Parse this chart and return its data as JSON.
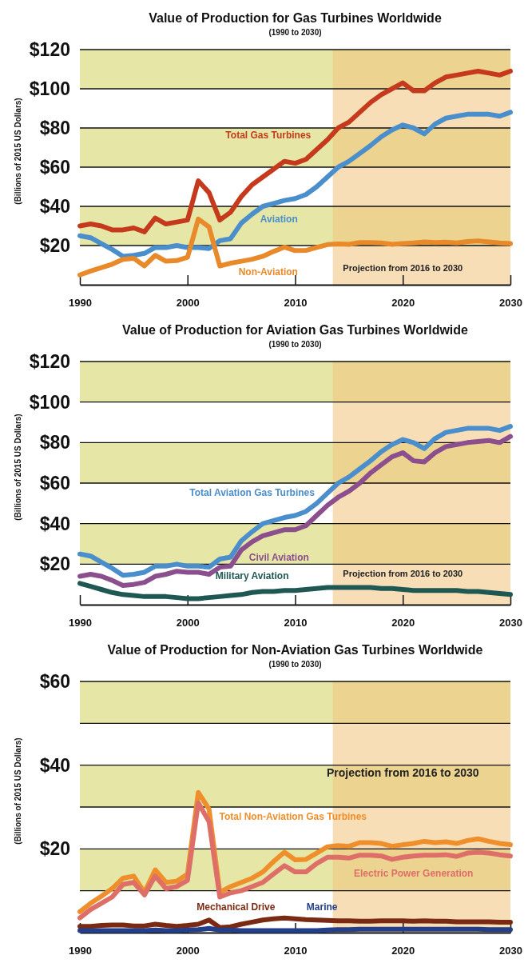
{
  "chart_data": [
    {
      "type": "line",
      "title": "Value of Production for Gas Turbines Worldwide",
      "subtitle": "(1990 to 2030)",
      "ylabel": "(Billions of 2015 US Dollars)",
      "x": [
        1990,
        1991,
        1992,
        1993,
        1994,
        1995,
        1996,
        1997,
        1998,
        1999,
        2000,
        2001,
        2002,
        2003,
        2004,
        2005,
        2006,
        2007,
        2008,
        2009,
        2010,
        2011,
        2012,
        2013,
        2014,
        2015,
        2016,
        2017,
        2018,
        2019,
        2020,
        2021,
        2022,
        2023,
        2024,
        2025,
        2026,
        2027,
        2028,
        2029,
        2030
      ],
      "xlim": [
        1990,
        2030
      ],
      "xticks": [
        1990,
        2000,
        2010,
        2020,
        2030
      ],
      "ylim": [
        0,
        120
      ],
      "yticks": [
        {
          "value": 20,
          "label": "$20"
        },
        {
          "value": 40,
          "label": "$40"
        },
        {
          "value": 60,
          "label": "$60"
        },
        {
          "value": 80,
          "label": "$80"
        },
        {
          "value": 100,
          "label": "$100"
        },
        {
          "value": 120,
          "label": "$120"
        }
      ],
      "grid": "y",
      "legend": false,
      "bands": [
        {
          "axis": "y",
          "from": 100,
          "to": 120,
          "color": "#e6e6a6"
        },
        {
          "axis": "y",
          "from": 60,
          "to": 80,
          "color": "#e6e6a6"
        },
        {
          "axis": "y",
          "from": 20,
          "to": 40,
          "color": "#e6e6a6"
        },
        {
          "axis": "x",
          "from": 2013.5,
          "to": 2030,
          "label": "Projection from 2016 to 2030",
          "color": "#f0c27c"
        }
      ],
      "series": [
        {
          "name": "Total Gas Turbines",
          "color": "#c53a1c",
          "values": [
            30,
            31,
            30,
            28,
            28,
            29,
            27,
            34,
            31,
            32,
            33,
            53,
            47,
            33,
            37,
            45,
            51,
            55,
            59,
            63,
            62,
            64,
            69,
            74,
            80,
            83,
            88,
            93,
            97,
            100,
            103,
            99,
            99,
            103,
            106,
            107,
            108,
            109,
            108,
            107,
            109
          ]
        },
        {
          "name": "Aviation",
          "color": "#4a8ecb",
          "values": [
            25,
            24,
            21,
            18,
            14.5,
            15,
            16,
            19,
            19,
            20,
            19,
            19,
            18.5,
            22.5,
            23.5,
            31.5,
            36,
            40,
            41.5,
            43,
            44,
            46,
            50,
            55,
            60,
            63,
            67,
            71,
            75.5,
            79,
            81.5,
            80,
            77,
            82,
            85,
            86,
            87,
            87,
            87,
            86,
            88
          ]
        },
        {
          "name": "Non-Aviation",
          "color": "#e8892a",
          "values": [
            5,
            7,
            8.7,
            10.5,
            13,
            13.5,
            9.6,
            15,
            12,
            12.3,
            14,
            33.5,
            29.5,
            9.6,
            11,
            12,
            13,
            14.5,
            17,
            19.2,
            17.4,
            17.5,
            19,
            20.5,
            20.8,
            20.6,
            21.5,
            21.5,
            21.3,
            20.6,
            21,
            21.3,
            21.8,
            21.5,
            21.7,
            21.3,
            22,
            22.4,
            21.8,
            21.3,
            21
          ]
        }
      ]
    },
    {
      "type": "line",
      "title": "Value of Production for Aviation Gas Turbines Worldwide",
      "subtitle": "(1990 to 2030)",
      "ylabel": "(Billions of 2015 US Dollars)",
      "x": [
        1990,
        1991,
        1992,
        1993,
        1994,
        1995,
        1996,
        1997,
        1998,
        1999,
        2000,
        2001,
        2002,
        2003,
        2004,
        2005,
        2006,
        2007,
        2008,
        2009,
        2010,
        2011,
        2012,
        2013,
        2014,
        2015,
        2016,
        2017,
        2018,
        2019,
        2020,
        2021,
        2022,
        2023,
        2024,
        2025,
        2026,
        2027,
        2028,
        2029,
        2030
      ],
      "xlim": [
        1990,
        2030
      ],
      "xticks": [
        1990,
        2000,
        2010,
        2020,
        2030
      ],
      "ylim": [
        0,
        120
      ],
      "yticks": [
        {
          "value": 20,
          "label": "$20"
        },
        {
          "value": 40,
          "label": "$40"
        },
        {
          "value": 60,
          "label": "$60"
        },
        {
          "value": 80,
          "label": "$80"
        },
        {
          "value": 100,
          "label": "$100"
        },
        {
          "value": 120,
          "label": "$120"
        }
      ],
      "grid": "y",
      "legend": false,
      "bands": [
        {
          "axis": "y",
          "from": 100,
          "to": 120,
          "color": "#e6e6a6"
        },
        {
          "axis": "y",
          "from": 60,
          "to": 80,
          "color": "#e6e6a6"
        },
        {
          "axis": "y",
          "from": 20,
          "to": 40,
          "color": "#e6e6a6"
        },
        {
          "axis": "x",
          "from": 2013.5,
          "to": 2030,
          "label": "Projection from 2016 to 2030",
          "color": "#f0c27c"
        }
      ],
      "series": [
        {
          "name": "Total Aviation Gas Turbines",
          "color": "#4a8ecb",
          "values": [
            25,
            24,
            21,
            18,
            14.5,
            15,
            16,
            19,
            19,
            20,
            19,
            19,
            18.5,
            22.5,
            23.5,
            31.5,
            36,
            40,
            41.5,
            43,
            44,
            46,
            50,
            55,
            60,
            63,
            67,
            71,
            75.5,
            79,
            81.5,
            80,
            77,
            82,
            85,
            86,
            87,
            87,
            87,
            86,
            88
          ]
        },
        {
          "name": "Civil Aviation",
          "color": "#8a4f8c",
          "values": [
            14,
            15,
            14,
            12,
            9.5,
            10,
            11,
            14,
            15,
            16.5,
            16,
            16,
            15,
            18.5,
            19,
            27,
            31,
            34,
            35.5,
            37,
            37,
            39,
            44,
            49,
            53,
            56,
            60,
            65,
            69,
            73,
            75,
            71,
            70.5,
            75,
            78,
            79,
            80,
            80.5,
            81,
            80,
            83
          ]
        },
        {
          "name": "Military Aviation",
          "color": "#1f5753",
          "values": [
            10.5,
            9,
            7.5,
            6,
            5,
            4.5,
            4,
            4,
            4,
            3.5,
            3,
            3,
            3.5,
            4,
            4.5,
            5,
            6,
            6.5,
            6.5,
            7,
            7,
            7.5,
            8,
            8.5,
            8.5,
            8.5,
            8.5,
            8.5,
            8,
            8,
            7.5,
            7,
            7,
            7,
            7,
            7,
            6.5,
            6.5,
            6,
            5.5,
            5
          ]
        }
      ]
    },
    {
      "type": "line",
      "title": "Value of Production for Non-Aviation Gas Turbines Worldwide",
      "subtitle": "(1990 to 2030)",
      "ylabel": "(Billions of 2015 US Dollars)",
      "x": [
        1990,
        1991,
        1992,
        1993,
        1994,
        1995,
        1996,
        1997,
        1998,
        1999,
        2000,
        2001,
        2002,
        2003,
        2004,
        2005,
        2006,
        2007,
        2008,
        2009,
        2010,
        2011,
        2012,
        2013,
        2014,
        2015,
        2016,
        2017,
        2018,
        2019,
        2020,
        2021,
        2022,
        2023,
        2024,
        2025,
        2026,
        2027,
        2028,
        2029,
        2030
      ],
      "xlim": [
        1990,
        2030
      ],
      "xticks": [
        1990,
        2000,
        2010,
        2020,
        2030
      ],
      "ylim": [
        0,
        60
      ],
      "yticks": [
        {
          "value": 10,
          "label": null
        },
        {
          "value": 20,
          "label": "$20"
        },
        {
          "value": 30,
          "label": null
        },
        {
          "value": 40,
          "label": "$40"
        },
        {
          "value": 50,
          "label": null
        },
        {
          "value": 60,
          "label": "$60"
        }
      ],
      "grid": "y",
      "legend": false,
      "bands": [
        {
          "axis": "y",
          "from": 50,
          "to": 60,
          "color": "#e6e6a6"
        },
        {
          "axis": "y",
          "from": 30,
          "to": 40,
          "color": "#e6e6a6"
        },
        {
          "axis": "y",
          "from": 10,
          "to": 20,
          "color": "#e6e6a6"
        },
        {
          "axis": "x",
          "from": 2013.5,
          "to": 2030,
          "label": "Projection from 2016 to 2030",
          "color": "#f0c27c"
        }
      ],
      "series": [
        {
          "name": "Total Non-Aviation Gas Turbines",
          "color": "#ee8f2c",
          "values": [
            5,
            7,
            8.7,
            10.5,
            13,
            13.5,
            9.6,
            15,
            12,
            12.3,
            14,
            33.5,
            29.5,
            9.6,
            11,
            12,
            13,
            14.5,
            17,
            19.2,
            17.4,
            17.5,
            19,
            20.5,
            20.8,
            20.6,
            21.5,
            21.5,
            21.3,
            20.6,
            21,
            21.3,
            21.8,
            21.5,
            21.7,
            21.3,
            22,
            22.4,
            21.8,
            21.3,
            21
          ]
        },
        {
          "name": "Electric Power Generation",
          "color": "#de6e68",
          "values": [
            3.5,
            5.5,
            7,
            8.5,
            11.5,
            12,
            9,
            13.5,
            10.5,
            11,
            12.5,
            31,
            26.5,
            8.5,
            9.5,
            10,
            11,
            12,
            14,
            16,
            14.5,
            14.5,
            16.5,
            18,
            18,
            17.8,
            18.5,
            18.5,
            18.3,
            17.5,
            18,
            18.3,
            18.5,
            18.5,
            18.6,
            18.2,
            19,
            19.2,
            19,
            18.6,
            18.3
          ]
        },
        {
          "name": "Mechanical Drive",
          "color": "#7a2a12",
          "values": [
            1.5,
            1.5,
            1.7,
            1.8,
            1.8,
            1.6,
            1.6,
            2,
            1.7,
            1.5,
            1.7,
            2,
            3,
            1.2,
            1.4,
            2,
            2.5,
            3,
            3.3,
            3.5,
            3.3,
            3.1,
            3,
            2.9,
            2.8,
            2.8,
            2.7,
            2.7,
            2.8,
            2.8,
            2.8,
            2.7,
            2.8,
            2.7,
            2.7,
            2.6,
            2.6,
            2.6,
            2.6,
            2.5,
            2.5
          ]
        },
        {
          "name": "Marine",
          "color": "#233f8a",
          "values": [
            0.5,
            0.5,
            0.5,
            0.5,
            0.5,
            0.5,
            0.5,
            0.6,
            0.5,
            0.5,
            0.6,
            0.7,
            1,
            0.6,
            0.6,
            0.5,
            0.5,
            0.5,
            0.5,
            0.5,
            0.5,
            0.5,
            0.5,
            0.6,
            0.7,
            0.7,
            0.8,
            0.8,
            0.8,
            0.8,
            0.8,
            0.8,
            0.8,
            0.8,
            0.8,
            0.8,
            0.8,
            0.8,
            0.7,
            0.7,
            0.7
          ]
        }
      ]
    }
  ]
}
